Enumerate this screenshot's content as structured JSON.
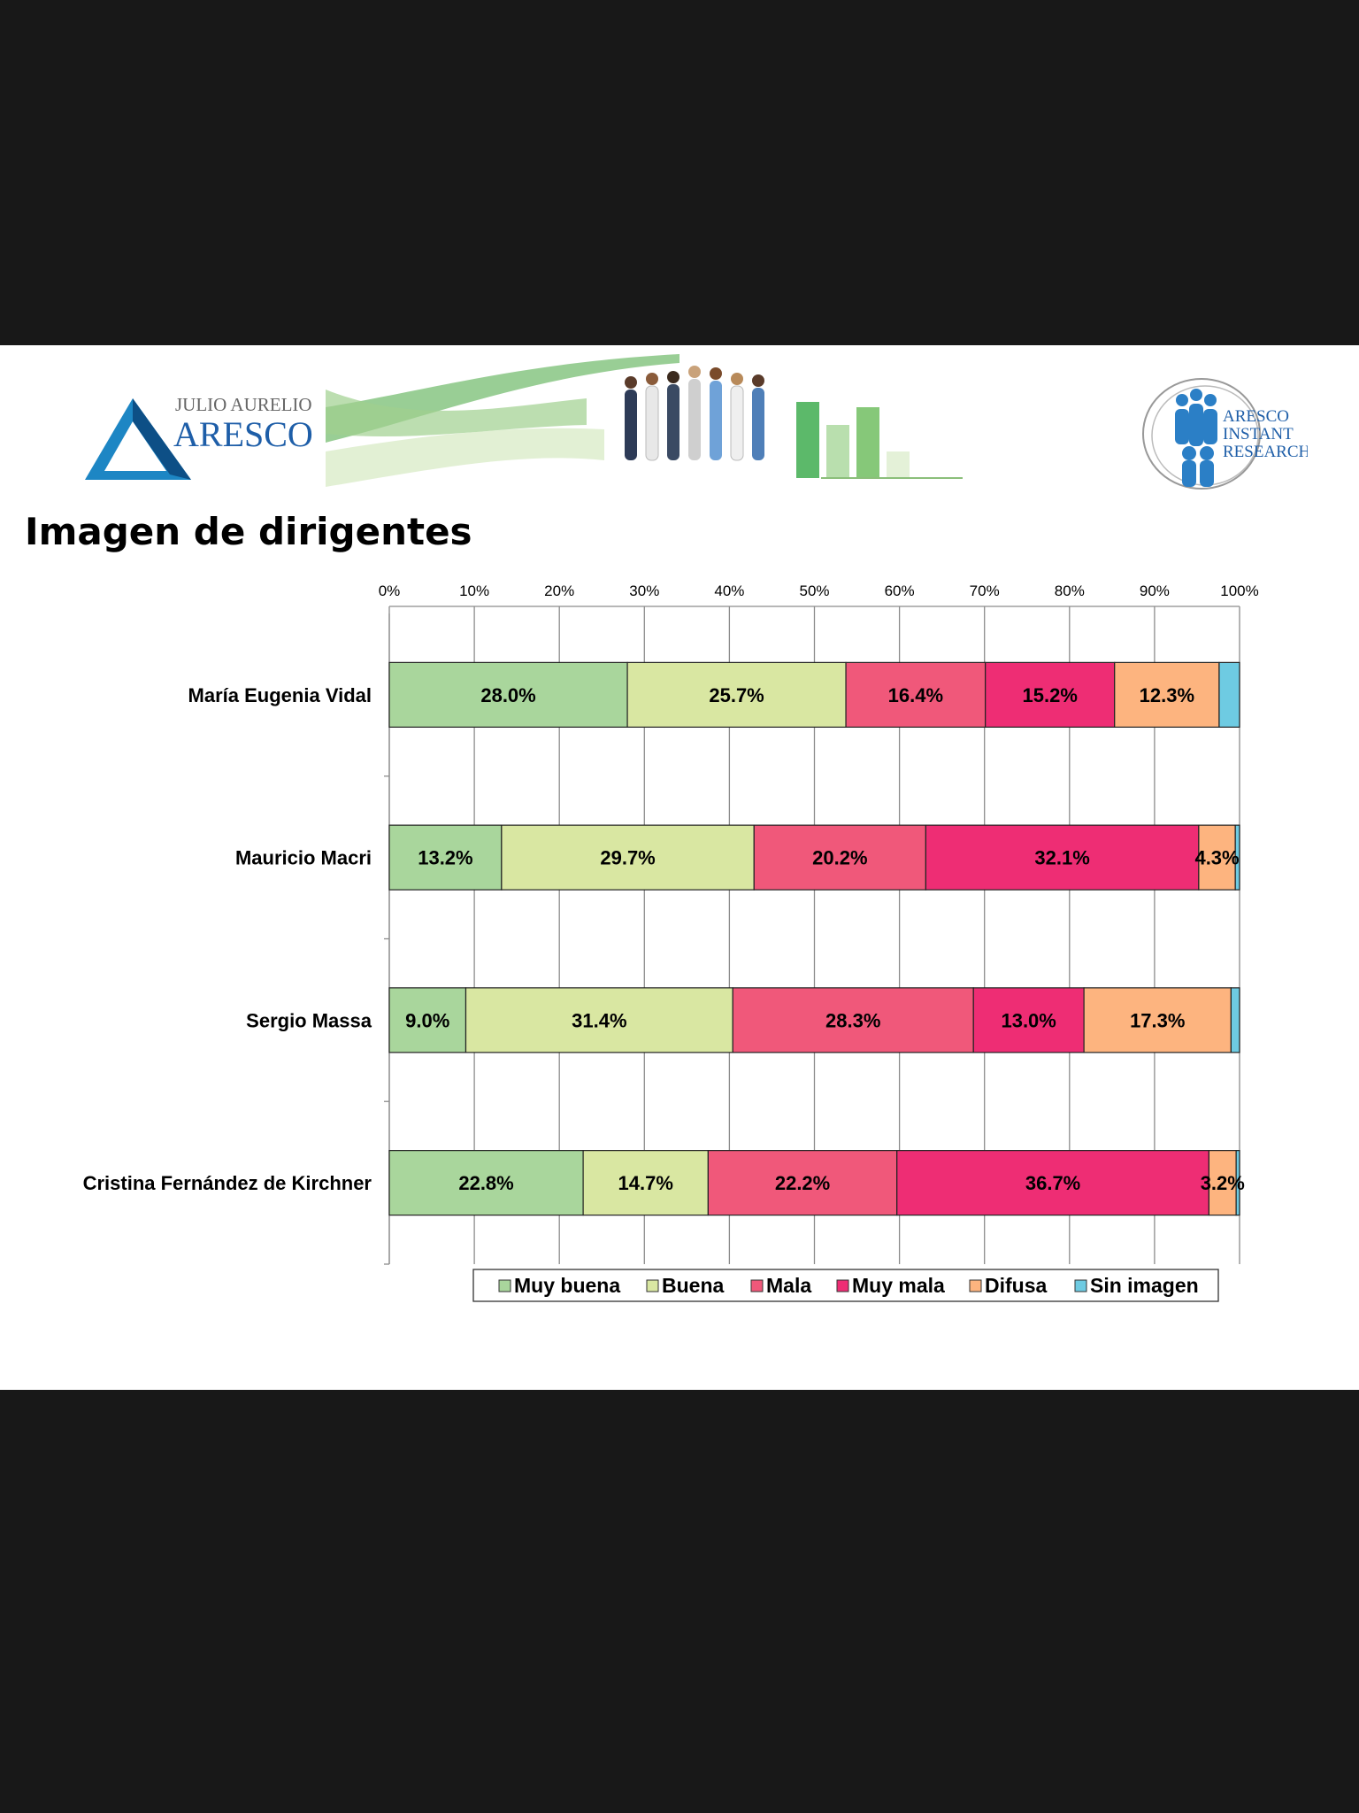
{
  "page": {
    "title": "Imagen de dirigentes"
  },
  "logos": {
    "left": {
      "line1": "JULIO AURELIO",
      "line2": "ARESCO"
    },
    "right": {
      "line1": "ARESCO",
      "line2": "INSTANT",
      "line3": "RESEARCH"
    }
  },
  "colors": {
    "Muy buena": "#a9d69c",
    "Buena": "#d9e7a2",
    "Mala": "#f0587a",
    "Muy mala": "#ee2d74",
    "Difusa": "#fdb47f",
    "Sin imagen": "#6ecbe2"
  },
  "chart_data": {
    "type": "bar",
    "orientation": "horizontal",
    "stacked": "percent",
    "title": "",
    "xlabel": "",
    "ylabel": "",
    "xlim": [
      0,
      100
    ],
    "x_ticks": [
      "0%",
      "10%",
      "20%",
      "30%",
      "40%",
      "50%",
      "60%",
      "70%",
      "80%",
      "90%",
      "100%"
    ],
    "grid": true,
    "legend_position": "bottom",
    "categories": [
      "María Eugenia Vidal",
      "Mauricio Macri",
      "Sergio Massa",
      "Cristina Fernández de Kirchner"
    ],
    "series": [
      {
        "name": "Muy buena",
        "values": [
          28.0,
          13.2,
          9.0,
          22.8
        ],
        "labels": [
          "28.0%",
          "13.2%",
          "9.0%",
          "22.8%"
        ]
      },
      {
        "name": "Buena",
        "values": [
          25.7,
          29.7,
          31.4,
          14.7
        ],
        "labels": [
          "25.7%",
          "29.7%",
          "31.4%",
          "14.7%"
        ]
      },
      {
        "name": "Mala",
        "values": [
          16.4,
          20.2,
          28.3,
          22.2
        ],
        "labels": [
          "16.4%",
          "20.2%",
          "28.3%",
          "22.2%"
        ]
      },
      {
        "name": "Muy mala",
        "values": [
          15.2,
          32.1,
          13.0,
          36.7
        ],
        "labels": [
          "15.2%",
          "32.1%",
          "13.0%",
          "36.7%"
        ]
      },
      {
        "name": "Difusa",
        "values": [
          12.3,
          4.3,
          17.3,
          3.2
        ],
        "labels": [
          "12.3%",
          "4.3%",
          "17.3%",
          "3.2%"
        ]
      },
      {
        "name": "Sin imagen",
        "values": [
          2.4,
          0.5,
          1.0,
          0.4
        ],
        "labels": [
          "",
          "",
          "",
          ""
        ]
      }
    ]
  }
}
